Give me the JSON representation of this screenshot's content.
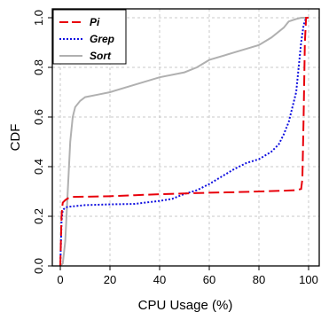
{
  "chart_data": {
    "type": "line",
    "xlabel": "CPU Usage (%)",
    "ylabel": "CDF",
    "xlim": [
      0,
      100
    ],
    "ylim": [
      0,
      1
    ],
    "x_ticks": [
      "0",
      "20",
      "40",
      "60",
      "80",
      "100"
    ],
    "y_ticks": [
      "0.0",
      "0.2",
      "0.4",
      "0.6",
      "0.8",
      "1.0"
    ],
    "grid": true,
    "legend_position": "top-left",
    "series": [
      {
        "name": "Pi",
        "color": "#e8000b",
        "dash": "long-dash",
        "x": [
          0,
          0.5,
          0.8,
          1,
          2,
          3,
          5,
          10,
          20,
          30,
          40,
          50,
          60,
          70,
          80,
          90,
          95,
          97,
          97.5,
          98,
          98.5,
          99,
          100
        ],
        "y": [
          0,
          0.2,
          0.24,
          0.255,
          0.265,
          0.272,
          0.278,
          0.279,
          0.281,
          0.285,
          0.289,
          0.292,
          0.295,
          0.297,
          0.3,
          0.303,
          0.305,
          0.31,
          0.35,
          0.6,
          0.9,
          1.0,
          1.0
        ]
      },
      {
        "name": "Grep",
        "color": "#1010e0",
        "dash": "dotted",
        "x": [
          0,
          0.5,
          0.8,
          1,
          2,
          3,
          5,
          10,
          20,
          30,
          40,
          45,
          50,
          55,
          60,
          65,
          70,
          75,
          80,
          85,
          88,
          90,
          92,
          93,
          94,
          95,
          96,
          97,
          98,
          99,
          100
        ],
        "y": [
          0,
          0.18,
          0.21,
          0.225,
          0.235,
          0.238,
          0.24,
          0.245,
          0.248,
          0.25,
          0.262,
          0.27,
          0.29,
          0.305,
          0.33,
          0.36,
          0.39,
          0.415,
          0.43,
          0.46,
          0.49,
          0.53,
          0.58,
          0.62,
          0.66,
          0.7,
          0.8,
          0.9,
          0.97,
          1.0,
          1.0
        ]
      },
      {
        "name": "Sort",
        "color": "#b0b0b0",
        "dash": "solid",
        "x": [
          0,
          1,
          2,
          3,
          4,
          5,
          6,
          8,
          10,
          15,
          20,
          30,
          40,
          50,
          55,
          60,
          70,
          80,
          85,
          90,
          92,
          95,
          97,
          100
        ],
        "y": [
          0,
          0.01,
          0.1,
          0.3,
          0.5,
          0.6,
          0.64,
          0.665,
          0.68,
          0.69,
          0.7,
          0.73,
          0.76,
          0.78,
          0.8,
          0.83,
          0.86,
          0.89,
          0.92,
          0.96,
          0.985,
          0.995,
          1.0,
          1.0
        ]
      }
    ]
  }
}
